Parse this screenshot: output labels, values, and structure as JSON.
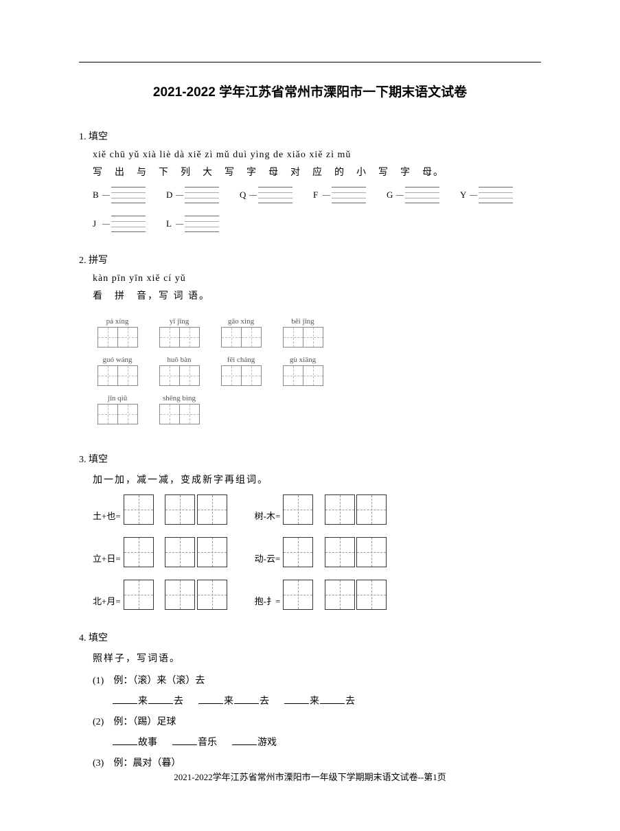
{
  "title": "2021-2022 学年江苏省常州市溧阳市一下期末语文试卷",
  "footer": "2021-2022学年江苏省常州市溧阳市一年级下学期期末语文试卷--第1页",
  "q1": {
    "num": "1.",
    "type": "填空",
    "pinyin": "xiě chū yǔ xià liè dà xiě zì mǔ duì yìng de xiǎo xiě zì mǔ",
    "hanzi": "写　出　与　下　列　大　写　字　母　对　应　的　小　写　字　母。",
    "letters": [
      "B",
      "D",
      "Q",
      "F",
      "G",
      "Y",
      "J",
      "L"
    ]
  },
  "q2": {
    "num": "2.",
    "type": "拼写",
    "pinyin": "kàn pīn yīn xiě cí yǔ",
    "hanzi": "看　拼　音，写 词 语。",
    "words": [
      "pá  xíng",
      "yǐ  jīng",
      "gāo xìng",
      "běi  jīng",
      "guó wáng",
      "huǒ bàn",
      "fēi cháng",
      "gù xiāng",
      "jīn  qiū",
      "shēng bìng"
    ]
  },
  "q3": {
    "num": "3.",
    "type": "填空",
    "intro": "加一加，减一减，变成新字再组词。",
    "rows": [
      {
        "left": "土+也=",
        "right": "树-木="
      },
      {
        "left": "立+日=",
        "right": "动-云="
      },
      {
        "left": "北+月=",
        "right": "抱-扌="
      }
    ]
  },
  "q4": {
    "num": "4.",
    "type": "填空",
    "intro": "照样子，写词语。",
    "sub1_label": "(1)　例：（滚）来（滚）去",
    "sub1_pattern_a": "来",
    "sub1_pattern_b": "去",
    "sub2_label": "(2)　例：（踢）足球",
    "sub2_a": "故事",
    "sub2_b": "音乐",
    "sub2_c": "游戏",
    "sub3_label": "(3)　例：晨对（暮）"
  }
}
